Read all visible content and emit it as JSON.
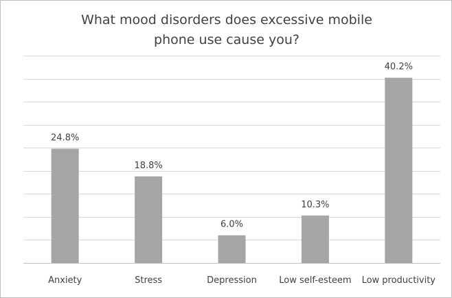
{
  "chart_data": {
    "type": "bar",
    "title": "What mood disorders does excessive mobile\nphone use cause you?",
    "categories": [
      "Anxiety",
      "Stress",
      "Depression",
      "Low self-esteem",
      "Low productivity"
    ],
    "values": [
      24.8,
      18.8,
      6.0,
      10.3,
      40.2
    ],
    "data_labels": [
      "24.8%",
      "18.8%",
      "6.0%",
      "10.3%",
      "40.2%"
    ],
    "ylim": [
      0,
      45
    ],
    "y_gridlines": true,
    "y_axis_labels_shown": false,
    "legend": "none",
    "bar_color": "#a5a5a5"
  }
}
